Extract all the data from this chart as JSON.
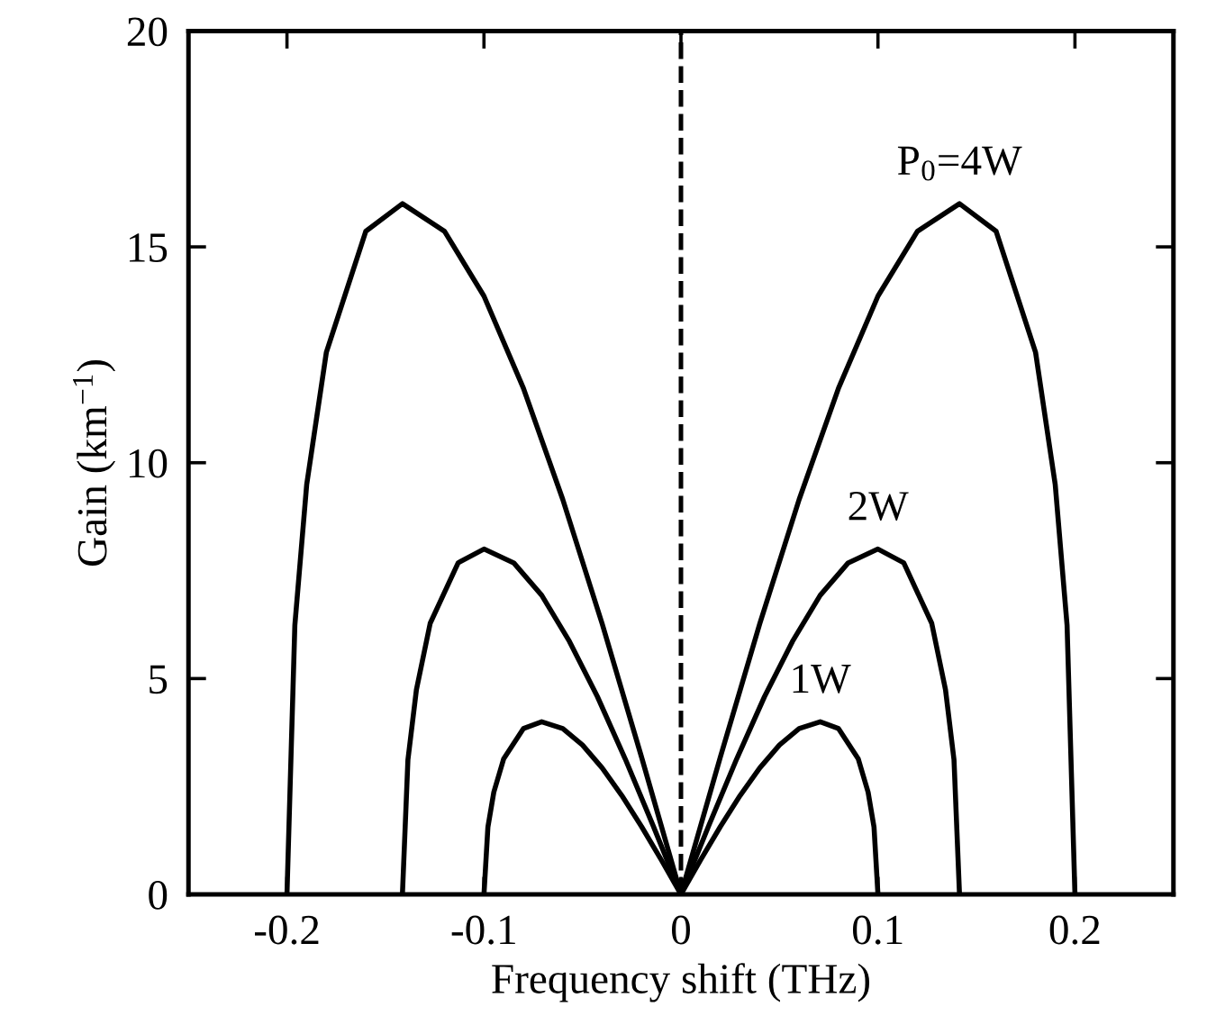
{
  "chart_data": {
    "type": "line",
    "xlabel": "Frequency shift (THz)",
    "ylabel": "Gain (km$^{−1}$)",
    "xlim": [
      -0.25,
      0.25
    ],
    "ylim": [
      0,
      20
    ],
    "xticks": [
      -0.2,
      -0.1,
      0,
      0.1,
      0.2
    ],
    "yticks": [
      0,
      5,
      10,
      15,
      20
    ],
    "grid": false,
    "legend": false,
    "marker": "none",
    "line_style": "solid",
    "ref_lines": [
      {
        "axis": "x",
        "value": 0,
        "color": "#000000",
        "line_style": "dashed"
      }
    ],
    "series": [
      {
        "color": "#000000",
        "x": [
          -0.2,
          -0.196,
          -0.19,
          -0.18,
          -0.16,
          -0.1414,
          -0.12,
          -0.1,
          -0.08,
          -0.06,
          -0.04,
          -0.02,
          0,
          0.02,
          0.04,
          0.06,
          0.08,
          0.1,
          0.12,
          0.1414,
          0.16,
          0.18,
          0.19,
          0.196,
          0.2
        ],
        "values": [
          0,
          6.24,
          9.49,
          12.56,
          15.36,
          16,
          15.36,
          13.86,
          11.73,
          9.15,
          6.27,
          3.18,
          0,
          3.18,
          6.27,
          9.15,
          11.73,
          13.86,
          15.36,
          16,
          15.36,
          12.56,
          9.49,
          6.24,
          0
        ]
      },
      {
        "color": "#000000",
        "x": [
          -0.1414,
          -0.1386,
          -0.1343,
          -0.1273,
          -0.1131,
          -0.1,
          -0.0849,
          -0.0707,
          -0.0566,
          -0.0424,
          -0.0283,
          -0.0141,
          0,
          0.0141,
          0.0283,
          0.0424,
          0.0566,
          0.0707,
          0.0849,
          0.1,
          0.1131,
          0.1273,
          0.1343,
          0.1386,
          0.1414
        ],
        "values": [
          0,
          3.12,
          4.74,
          6.28,
          7.68,
          8,
          7.68,
          6.93,
          5.86,
          4.58,
          3.14,
          1.59,
          0,
          1.59,
          3.14,
          4.58,
          5.86,
          6.93,
          7.68,
          8,
          7.68,
          6.28,
          4.74,
          3.12,
          0
        ]
      },
      {
        "color": "#000000",
        "x": [
          -0.1,
          -0.098,
          -0.095,
          -0.09,
          -0.08,
          -0.0707,
          -0.06,
          -0.05,
          -0.04,
          -0.03,
          -0.02,
          -0.01,
          0,
          0.01,
          0.02,
          0.03,
          0.04,
          0.05,
          0.06,
          0.0707,
          0.08,
          0.09,
          0.095,
          0.098,
          0.1
        ],
        "values": [
          0,
          1.56,
          2.37,
          3.14,
          3.84,
          4,
          3.84,
          3.46,
          2.93,
          2.29,
          1.57,
          0.8,
          0,
          0.8,
          1.57,
          2.29,
          2.93,
          3.46,
          3.84,
          4,
          3.84,
          3.14,
          2.37,
          1.56,
          0
        ]
      }
    ],
    "annotations": [
      "P$_{0}$=4W",
      "2W",
      "1W"
    ]
  }
}
